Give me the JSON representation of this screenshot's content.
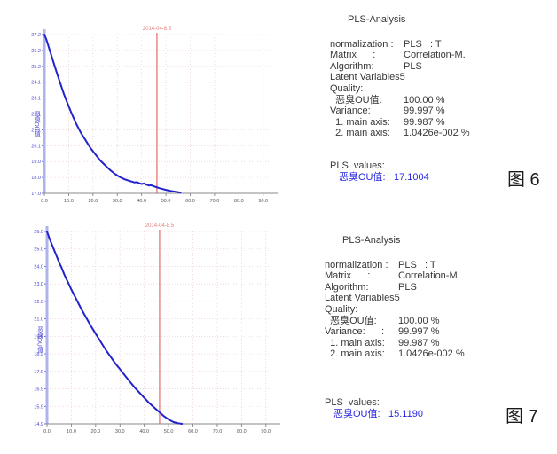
{
  "colors": {
    "curve_blue": "#2323cd",
    "axis_band_blue": "#aeb3ec",
    "tick_label_blue": "#4646cc",
    "x_tick_text": "#555555",
    "grid_pink": "#ecd2d2",
    "marker_red": "#e04b4b",
    "marker_text_red": "#e87b7b",
    "panel_text": "#383838",
    "value_blue": "#2a2ae0"
  },
  "chart_data": [
    {
      "id": "fig6",
      "type": "line",
      "title": "",
      "xlabel": "",
      "ylabel": "恶臭OU值",
      "grid": true,
      "legend": "none",
      "xlim": [
        0,
        93
      ],
      "ylim": [
        17.0,
        27.2
      ],
      "x_ticks": [
        "0.0",
        "10.0",
        "20.0",
        "30.0",
        "40.0",
        "50.0",
        "60.0",
        "70.0",
        "80.0",
        "90.0"
      ],
      "y_ticks": [
        "27.2",
        "26.2",
        "25.2",
        "24.1",
        "23.1",
        "22.1",
        "21.1",
        "20.1",
        "19.0",
        "18.0",
        "17.0"
      ],
      "marker": {
        "label": "2014-04-8.5",
        "x": 46.3
      },
      "series": [
        {
          "name": "恶臭OU值",
          "x": [
            0,
            0.8,
            1.6,
            2.6,
            3.8,
            5,
            6.5,
            8,
            9.5,
            11,
            13,
            15,
            17,
            19,
            21,
            23,
            25,
            27,
            29,
            31,
            33,
            35,
            36,
            37,
            38,
            39,
            40,
            41,
            42,
            43,
            44,
            45,
            46,
            47,
            48,
            50,
            52,
            54,
            56
          ],
          "y": [
            27.2,
            26.9,
            26.5,
            26.0,
            25.4,
            24.8,
            24.1,
            23.4,
            22.8,
            22.2,
            21.5,
            20.9,
            20.4,
            19.9,
            19.5,
            19.1,
            18.8,
            18.5,
            18.25,
            18.05,
            17.9,
            17.8,
            17.75,
            17.7,
            17.72,
            17.65,
            17.6,
            17.63,
            17.55,
            17.5,
            17.52,
            17.45,
            17.4,
            17.35,
            17.3,
            17.22,
            17.15,
            17.1,
            17.05
          ]
        }
      ]
    },
    {
      "id": "fig7",
      "type": "line",
      "title": "",
      "xlabel": "",
      "ylabel": "恶臭OU值",
      "grid": true,
      "legend": "none",
      "xlim": [
        0,
        93
      ],
      "ylim": [
        14.9,
        26.0
      ],
      "x_ticks": [
        "0.0",
        "10.0",
        "20.0",
        "30.0",
        "40.0",
        "50.0",
        "60.0",
        "70.0",
        "80.0",
        "90.0"
      ],
      "y_ticks": [
        "26.0",
        "25.0",
        "24.0",
        "23.0",
        "22.0",
        "21.0",
        "19.9",
        "18.9",
        "17.9",
        "16.9",
        "15.9",
        "14.9"
      ],
      "marker": {
        "label": "2014-04-8.5",
        "x": 46.3
      },
      "series": [
        {
          "name": "恶臭OU值",
          "x": [
            0,
            1,
            2,
            3,
            4,
            5,
            6,
            7,
            8,
            9,
            10,
            12,
            14,
            16,
            18,
            20,
            22,
            24,
            26,
            28,
            30,
            32,
            34,
            36,
            38,
            40,
            42,
            44,
            46,
            48,
            50,
            52,
            54,
            55.5
          ],
          "y": [
            26.0,
            25.6,
            25.25,
            24.9,
            24.55,
            24.2,
            23.9,
            23.55,
            23.25,
            22.95,
            22.65,
            22.1,
            21.55,
            21.05,
            20.55,
            20.1,
            19.65,
            19.2,
            18.8,
            18.4,
            18.05,
            17.7,
            17.35,
            17.0,
            16.7,
            16.4,
            16.1,
            15.85,
            15.6,
            15.35,
            15.15,
            15.0,
            14.93,
            14.9
          ]
        }
      ]
    }
  ],
  "figures": [
    {
      "caption": "图 6",
      "panel": {
        "title": "PLS-Analysis",
        "rows": [
          {
            "label": "normalization :",
            "value": "PLS   : T"
          },
          {
            "label": "Matrix      :",
            "value": "Correlation-M."
          },
          {
            "label": "Algorithm:",
            "value": "PLS"
          },
          {
            "label": "Latent Variables5",
            "value": ""
          },
          {
            "label": "Quality:",
            "value": ""
          },
          {
            "label": "  恶臭OU值:",
            "value": "100.00 %"
          },
          {
            "label": "Variance:      :",
            "value": "99.997 %"
          },
          {
            "label": "  1. main axis:",
            "value": "99.987 %"
          },
          {
            "label": "  2. main axis:",
            "value": "1.0426e-002 %"
          }
        ],
        "values_heading": "PLS  values:",
        "result_label": "恶臭OU值:",
        "result_value": "17.1004"
      }
    },
    {
      "caption": "图 7",
      "panel": {
        "title": "PLS-Analysis",
        "rows": [
          {
            "label": "normalization :",
            "value": "PLS   : T"
          },
          {
            "label": "Matrix      :",
            "value": "Correlation-M."
          },
          {
            "label": "Algorithm:",
            "value": "PLS"
          },
          {
            "label": "Latent Variables5",
            "value": ""
          },
          {
            "label": "Quality:",
            "value": ""
          },
          {
            "label": "  恶臭OU值:",
            "value": "100.00 %"
          },
          {
            "label": "Variance:      :",
            "value": "99.997 %"
          },
          {
            "label": "  1. main axis:",
            "value": "99.987 %"
          },
          {
            "label": "  2. main axis:",
            "value": "1.0426e-002 %"
          }
        ],
        "values_heading": "PLS  values:",
        "result_label": "恶臭OU值:",
        "result_value": "15.1190"
      }
    }
  ]
}
